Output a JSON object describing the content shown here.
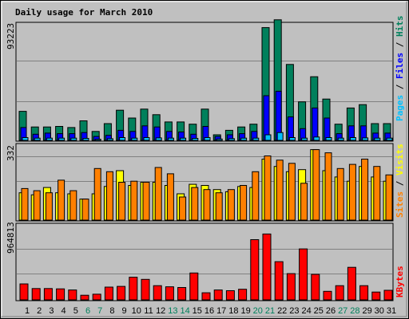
{
  "title": "Daily usage for March 2010",
  "colors": {
    "title": "#0000cc",
    "hits": "#00805c",
    "files": "#0000ff",
    "pages": "#00c0ff",
    "visits": "#ffff00",
    "sites": "#ff8000",
    "kbytes": "#ff0000",
    "plot_bg": "#c0c0c0",
    "weekend_label": "#00805c",
    "weekday_label": "#000000"
  },
  "chart_data": [
    {
      "type": "bar",
      "title": "Pages / Files / Hits",
      "tick_label": "93223",
      "ylim": [
        0,
        105000
      ],
      "series": [
        {
          "name": "Hits",
          "values": [
            26000,
            12000,
            12000,
            12500,
            11500,
            17500,
            8000,
            15000,
            27000,
            20000,
            28000,
            23000,
            16500,
            16500,
            14500,
            28000,
            5000,
            9000,
            12000,
            14500,
            101000,
            108000,
            68000,
            34500,
            57000,
            37000,
            14500,
            29000,
            32000,
            15000,
            15000
          ]
        },
        {
          "name": "Files",
          "values": [
            11500,
            5500,
            6500,
            6000,
            6000,
            7000,
            3500,
            4500,
            9000,
            8000,
            13000,
            12000,
            8000,
            7500,
            5500,
            12500,
            3500,
            5000,
            6000,
            8000,
            40000,
            44000,
            21000,
            10500,
            29000,
            20000,
            6000,
            13000,
            13000,
            6500,
            6500
          ]
        },
        {
          "name": "Pages",
          "values": [
            2500,
            2000,
            2000,
            2000,
            2000,
            1800,
            1000,
            1500,
            2500,
            2000,
            2500,
            2200,
            2000,
            2000,
            1800,
            2500,
            1200,
            1600,
            2000,
            2000,
            5000,
            7000,
            2500,
            2000,
            3000,
            2500,
            2000,
            2500,
            2200,
            2000,
            2000
          ]
        }
      ]
    },
    {
      "type": "bar",
      "title": "Sites / Visits",
      "tick_label": "332",
      "ylim": [
        0,
        360
      ],
      "series": [
        {
          "name": "Visits",
          "values": [
            130,
            120,
            155,
            130,
            125,
            100,
            125,
            160,
            235,
            165,
            180,
            180,
            165,
            125,
            170,
            165,
            145,
            135,
            160,
            155,
            290,
            255,
            230,
            240,
            335,
            235,
            205,
            185,
            255,
            205,
            185
          ]
        },
        {
          "name": "Sites",
          "values": [
            150,
            140,
            130,
            190,
            140,
            100,
            245,
            230,
            180,
            185,
            180,
            250,
            220,
            110,
            155,
            145,
            130,
            145,
            165,
            230,
            305,
            285,
            270,
            175,
            335,
            320,
            245,
            265,
            290,
            255,
            215
          ]
        }
      ]
    },
    {
      "type": "bar",
      "title": "KBytes",
      "tick_label": "964813",
      "ylim": [
        0,
        1070000
      ],
      "series": [
        {
          "name": "KBytes",
          "values": [
            225000,
            160000,
            160000,
            155000,
            140000,
            65000,
            80000,
            180000,
            190000,
            320000,
            290000,
            200000,
            185000,
            175000,
            380000,
            100000,
            140000,
            130000,
            150000,
            850000,
            930000,
            540000,
            370000,
            720000,
            360000,
            120000,
            200000,
            460000,
            200000,
            110000,
            135000
          ]
        }
      ]
    }
  ],
  "x_labels": [
    "1",
    "2",
    "3",
    "4",
    "5",
    "6",
    "7",
    "8",
    "9",
    "10",
    "11",
    "12",
    "13",
    "14",
    "15",
    "16",
    "17",
    "18",
    "19",
    "20",
    "21",
    "22",
    "23",
    "24",
    "25",
    "26",
    "27",
    "28",
    "29",
    "30",
    "31"
  ],
  "weekend_days": [
    6,
    7,
    13,
    14,
    20,
    21,
    27,
    28
  ]
}
